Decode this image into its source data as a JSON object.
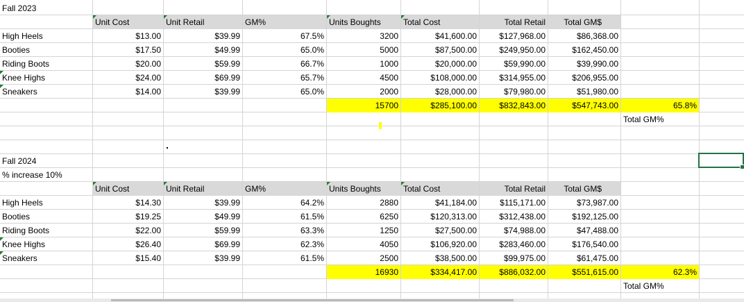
{
  "fall2023": {
    "title": "Fall 2023",
    "headers": [
      "Unit Cost",
      "Unit Retail",
      "GM%",
      "Units Boughts",
      "Total Cost",
      "Total Retail",
      "Total GM$"
    ],
    "rows": [
      [
        "High Heels",
        "$13.00",
        "$39.99",
        "67.5%",
        "3200",
        "$41,600.00",
        "$127,968.00",
        "$86,368.00"
      ],
      [
        "Booties",
        "$17.50",
        "$49.99",
        "65.0%",
        "5000",
        "$87,500.00",
        "$249,950.00",
        "$162,450.00"
      ],
      [
        "Riding Boots",
        "$20.00",
        "$59.99",
        "66.7%",
        "1000",
        "$20,000.00",
        "$59,990.00",
        "$39,990.00"
      ],
      [
        "Knee Highs",
        "$24.00",
        "$69.99",
        "65.7%",
        "4500",
        "$108,000.00",
        "$314,955.00",
        "$206,955.00"
      ],
      [
        "Sneakers",
        "$14.00",
        "$39.99",
        "65.0%",
        "2000",
        "$28,000.00",
        "$79,980.00",
        "$51,980.00"
      ]
    ],
    "totals": [
      "15700",
      "$285,100.00",
      "$832,843.00",
      "$547,743.00",
      "65.8%"
    ],
    "total_gm_label": "Total GM%"
  },
  "fall2024": {
    "title": "Fall 2024",
    "increase_label": "% increase  10%",
    "headers": [
      "Unit Cost",
      "Unit Retail",
      "GM%",
      "Units Boughts",
      "Total Cost",
      "Total Retail",
      "Total GM$"
    ],
    "rows": [
      [
        "High Heels",
        "$14.30",
        "$39.99",
        "64.2%",
        "2880",
        "$41,184.00",
        "$115,171.00",
        "$73,987.00"
      ],
      [
        "Booties",
        "$19.25",
        "$49.99",
        "61.5%",
        "6250",
        "$120,313.00",
        "$312,438.00",
        "$192,125.00"
      ],
      [
        "Riding Boots",
        "$22.00",
        "$59.99",
        "63.3%",
        "1250",
        "$27,500.00",
        "$74,988.00",
        "$47,488.00"
      ],
      [
        "Knee Highs",
        "$26.40",
        "$69.99",
        "62.3%",
        "4050",
        "$106,920.00",
        "$283,460.00",
        "$176,540.00"
      ],
      [
        "Sneakers",
        "$15.40",
        "$39.99",
        "61.5%",
        "2500",
        "$38,500.00",
        "$99,975.00",
        "$61,475.00"
      ]
    ],
    "totals": [
      "16930",
      "$334,417.00",
      "$886,032.00",
      "$551,615.00",
      "62.3%"
    ],
    "total_gm_label": "Total GM%"
  },
  "colors": {
    "header_fill": "#d9d9d9",
    "highlight_fill": "#ffff00",
    "selection": "#217346",
    "gridline": "#d4d4d4"
  }
}
